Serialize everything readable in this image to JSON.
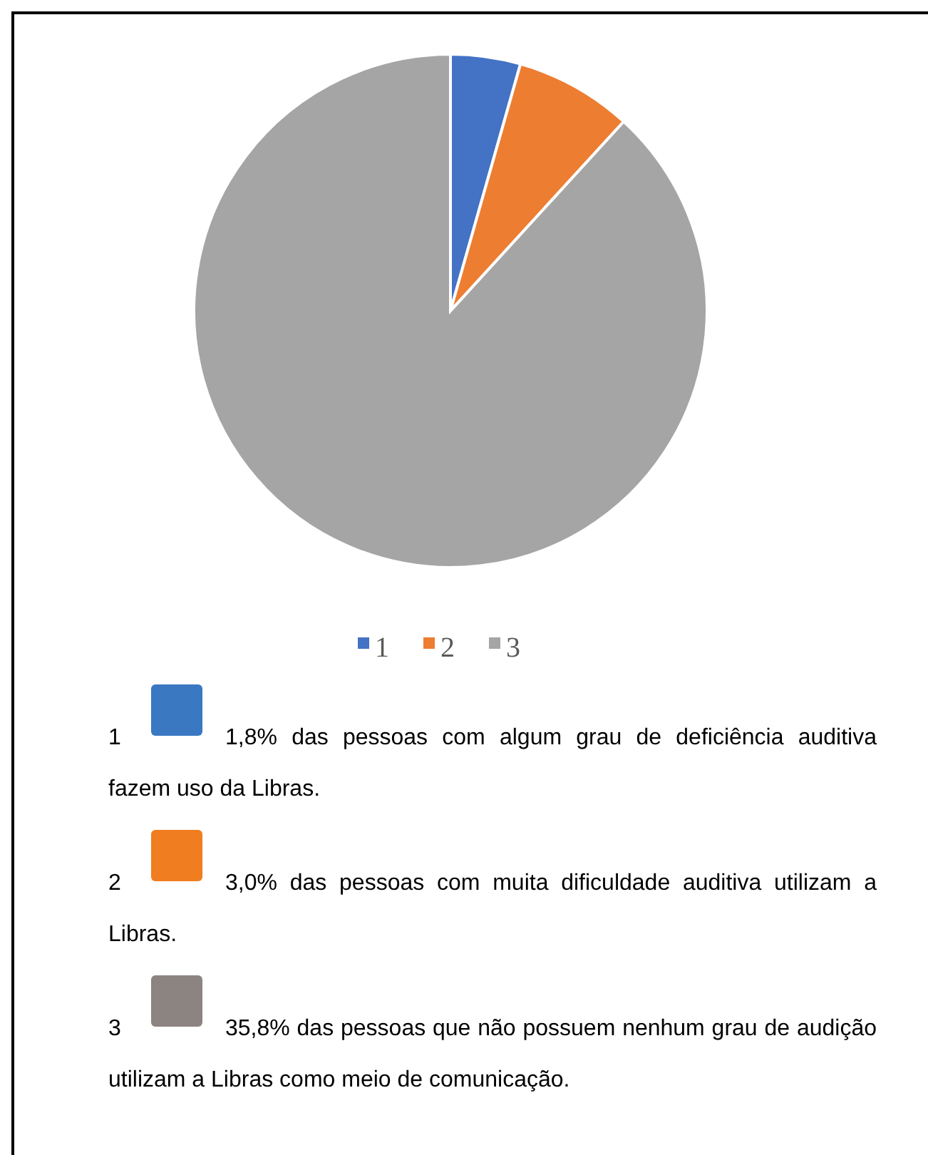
{
  "chart_data": {
    "type": "pie",
    "categories": [
      "1",
      "2",
      "3"
    ],
    "values": [
      4.4,
      7.4,
      88.2
    ],
    "colors": [
      "#4472c4",
      "#ed7d31",
      "#a5a5a5"
    ],
    "legend": "bottom",
    "annotations": [
      "1,8% das pessoas com algum grau de deficiência auditiva fazem uso da Libras.",
      "3,0% das pessoas com muita dificuldade auditiva utilizam a Libras.",
      "35,8% das pessoas que não possuem nenhum grau de audição utilizam a Libras como meio de comunicação."
    ]
  }
}
